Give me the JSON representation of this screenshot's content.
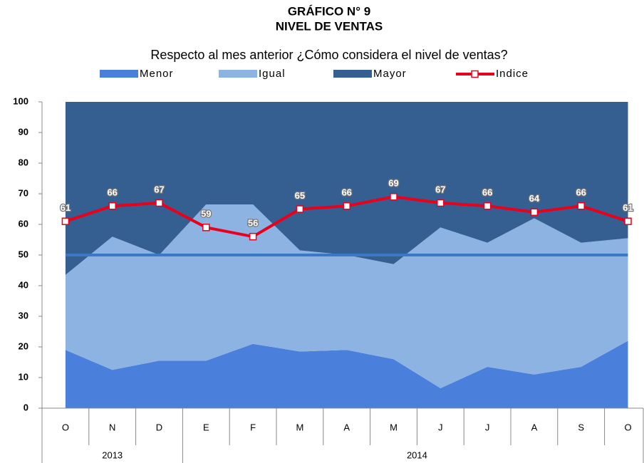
{
  "chart_data": {
    "type": "stacked_area_line",
    "title": "GRÁFICO N° 9",
    "subtitle": "NIVEL DE VENTAS",
    "question": "Respecto al mes anterior ¿Cómo considera el nivel de ventas?",
    "categories": [
      "O",
      "N",
      "D",
      "E",
      "F",
      "M",
      "A",
      "M",
      "J",
      "J",
      "A",
      "S",
      "O"
    ],
    "groups": [
      {
        "label": "2013",
        "span": 3
      },
      {
        "label": "2014",
        "span": 10
      }
    ],
    "series": [
      {
        "name": "Menor",
        "color": "#4a80dc",
        "values": [
          19,
          12.5,
          15.5,
          15.5,
          21,
          18.5,
          19,
          16,
          6.5,
          13.5,
          11,
          13.5,
          22
        ]
      },
      {
        "name": "Igual",
        "color": "#8db3e2",
        "values": [
          24.5,
          43.5,
          34.5,
          51,
          45.5,
          33,
          31,
          31,
          52.5,
          40.5,
          51,
          40.5,
          33.5
        ]
      },
      {
        "name": "Mayor",
        "color": "#355f91",
        "values": [
          56.5,
          44,
          50,
          33.5,
          33.5,
          48.5,
          50,
          53,
          41,
          46,
          38,
          46,
          44.5
        ]
      }
    ],
    "line": {
      "name": "Indice",
      "color": "#e8001c",
      "values": [
        61,
        66,
        67,
        59,
        56,
        65,
        66,
        69,
        67,
        66,
        64,
        66,
        61
      ]
    },
    "reference_line": {
      "value": 50,
      "color": "#3d78c6"
    },
    "ylim": [
      0,
      100
    ],
    "yticks": [
      0,
      10,
      20,
      30,
      40,
      50,
      60,
      70,
      80,
      90,
      100
    ]
  }
}
